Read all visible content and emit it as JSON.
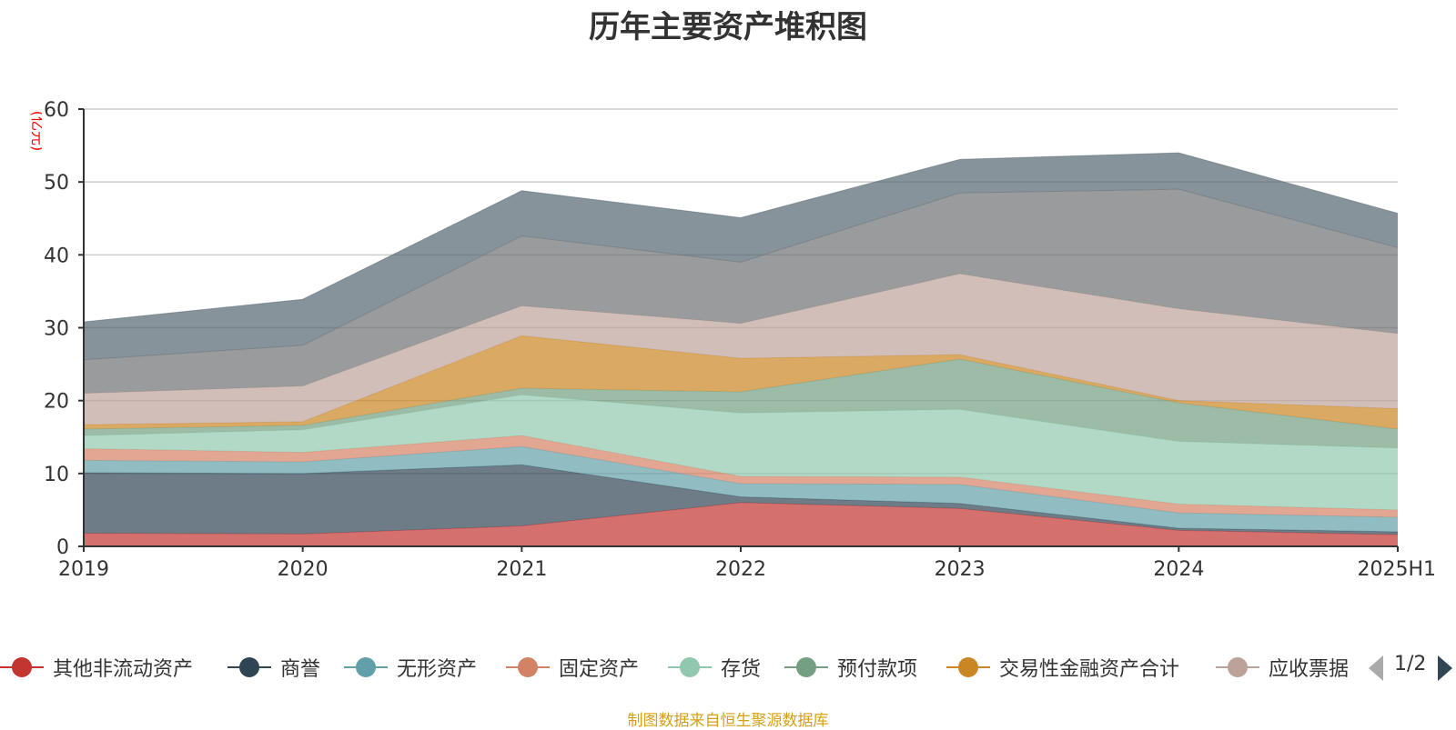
{
  "chart_data": {
    "type": "area",
    "title": "历年主要资产堆积图",
    "ylabel": "(亿元)",
    "xlabel": "",
    "ylim": [
      0,
      60
    ],
    "yticks": [
      0,
      10,
      20,
      30,
      40,
      50,
      60
    ],
    "grid": true,
    "stacked": true,
    "categories": [
      "2019",
      "2020",
      "2021",
      "2022",
      "2023",
      "2024",
      "2025H1"
    ],
    "series": [
      {
        "name": "其他非流动资产",
        "color": "#c23531",
        "values": [
          1.8,
          1.7,
          2.8,
          6.0,
          5.2,
          2.2,
          1.6
        ]
      },
      {
        "name": "商誉",
        "color": "#2f4554",
        "values": [
          8.3,
          8.3,
          8.4,
          0.8,
          0.7,
          0.3,
          0.4
        ]
      },
      {
        "name": "无形资产",
        "color": "#61a0a8",
        "values": [
          1.7,
          1.6,
          2.5,
          1.8,
          2.6,
          2.1,
          2.0
        ]
      },
      {
        "name": "固定资产",
        "color": "#d48265",
        "values": [
          1.6,
          1.3,
          1.5,
          1.0,
          1.0,
          1.2,
          1.0
        ]
      },
      {
        "name": "存货",
        "color": "#91c7ae",
        "values": [
          1.8,
          3.1,
          5.6,
          8.7,
          9.3,
          8.6,
          8.5
        ]
      },
      {
        "name": "预付款项",
        "color": "#749f83",
        "values": [
          0.9,
          0.6,
          0.9,
          2.9,
          6.9,
          5.3,
          2.6
        ]
      },
      {
        "name": "交易性金融资产合计",
        "color": "#ca8622",
        "values": [
          0.6,
          0.5,
          7.2,
          4.6,
          0.6,
          0.3,
          2.8
        ]
      },
      {
        "name": "应收票据",
        "color": "#bda29a",
        "values": [
          4.3,
          4.9,
          4.1,
          4.8,
          11.1,
          12.6,
          10.3
        ]
      },
      {
        "name": "",
        "color": "#6e7074",
        "values": [
          4.6,
          5.6,
          9.6,
          8.4,
          11.1,
          16.4,
          11.8
        ]
      },
      {
        "name": "",
        "color": "#546570",
        "values": [
          5.2,
          6.3,
          6.2,
          6.1,
          4.6,
          5.0,
          4.7
        ]
      }
    ]
  },
  "legend": {
    "items": [
      "其他非流动资产",
      "商誉",
      "无形资产",
      "固定资产",
      "存货",
      "预付款项",
      "交易性金融资产合计",
      "应收票据"
    ],
    "page": "1/2"
  },
  "footer": {
    "source": "制图数据来自恒生聚源数据库"
  }
}
